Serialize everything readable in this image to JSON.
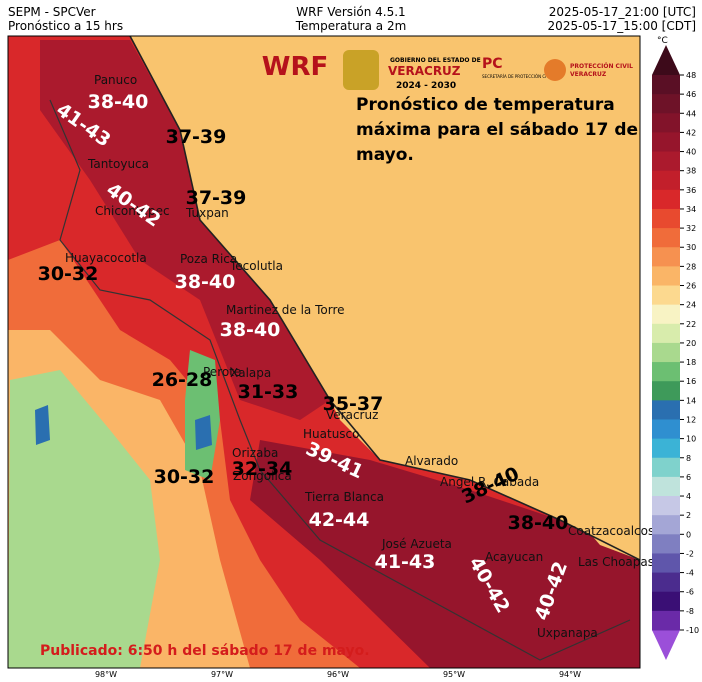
{
  "header": {
    "left": [
      "SEPM - SPCVer",
      "Pronóstico a 15 hrs"
    ],
    "center": [
      "WRF Versión 4.5.1",
      "Temperatura a 2m"
    ],
    "right": [
      "2025-05-17_21:00 [UTC]",
      "2025-05-17_15:00 [CDT]"
    ]
  },
  "logos": {
    "wrf": "WRF",
    "gov": [
      "GOBIERNO DEL ESTADO DE",
      "VERACRUZ",
      "2024 - 2030"
    ],
    "pc": [
      "PC",
      "SECRETARÍA DE PROTECCIÓN CIVIL"
    ],
    "pcv": [
      "PROTECCIÓN CIVIL",
      "VERACRUZ"
    ]
  },
  "forecast_note": [
    "Pronóstico de temperatura",
    "máxima para el sábado 17 de",
    "mayo."
  ],
  "places": [
    "Panuco",
    "Tantoyuca",
    "Chicontepec",
    "Tuxpan",
    "Huayacocotla",
    "Poza Rica",
    "Tecolutla",
    "Martinez de la Torre",
    "Perote",
    "Xalapa",
    "Veracruz",
    "Orizaba",
    "Zongolica",
    "Huatusco",
    "Alvarado",
    "Tierra Blanca",
    "Angel R. Cabada",
    "José Azueta",
    "Acayucan",
    "Coatzacoalcos",
    "Las Choapas",
    "Uxpanapa"
  ],
  "ranges": [
    {
      "label": "38-40",
      "color": "#ffffff"
    },
    {
      "label": "37-39",
      "color": "#000000"
    },
    {
      "label": "41-43",
      "color": "#ffffff"
    },
    {
      "label": "37-39",
      "color": "#000000"
    },
    {
      "label": "40-42",
      "color": "#ffffff"
    },
    {
      "label": "30-32",
      "color": "#000000"
    },
    {
      "label": "38-40",
      "color": "#ffffff"
    },
    {
      "label": "38-40",
      "color": "#ffffff"
    },
    {
      "label": "26-28",
      "color": "#000000"
    },
    {
      "label": "31-33",
      "color": "#000000"
    },
    {
      "label": "35-37",
      "color": "#000000"
    },
    {
      "label": "30-32",
      "color": "#000000"
    },
    {
      "label": "32-34",
      "color": "#000000"
    },
    {
      "label": "39-41",
      "color": "#ffffff"
    },
    {
      "label": "42-44",
      "color": "#ffffff"
    },
    {
      "label": "41-43",
      "color": "#ffffff"
    },
    {
      "label": "38-40",
      "color": "#000000"
    },
    {
      "label": "38-40",
      "color": "#000000"
    },
    {
      "label": "40-42",
      "color": "#ffffff"
    },
    {
      "label": "40-42",
      "color": "#ffffff"
    }
  ],
  "published": "Publicado: 6:50 h del sábado 17 de mayo.",
  "longitudes": [
    "98°W",
    "97°W",
    "96°W",
    "95°W",
    "94°W"
  ],
  "colorbar": {
    "unit": "°C",
    "ticks": [
      48,
      46,
      44,
      42,
      40,
      38,
      36,
      34,
      32,
      30,
      28,
      26,
      24,
      22,
      20,
      18,
      16,
      14,
      12,
      10,
      8,
      6,
      4,
      2,
      0,
      -2,
      -4,
      -6,
      -8,
      -10
    ],
    "colors": [
      "#5a0f25",
      "#6e1228",
      "#82132a",
      "#96152c",
      "#ab1a2d",
      "#c21f2b",
      "#d9282a",
      "#e84a2f",
      "#f06c3a",
      "#f69150",
      "#fab567",
      "#fcd98f",
      "#f8f3c4",
      "#d8ecac",
      "#a9d98e",
      "#6cbf72",
      "#3e9a5a",
      "#2a6fb0",
      "#2f8fd0",
      "#3bb3d6",
      "#7fd2cc",
      "#bfe3dc",
      "#c6c8e6",
      "#a4a6d6",
      "#7f7fc1",
      "#5f56ab",
      "#4b2c8e",
      "#3a0f75",
      "#6a2aa8"
    ]
  }
}
